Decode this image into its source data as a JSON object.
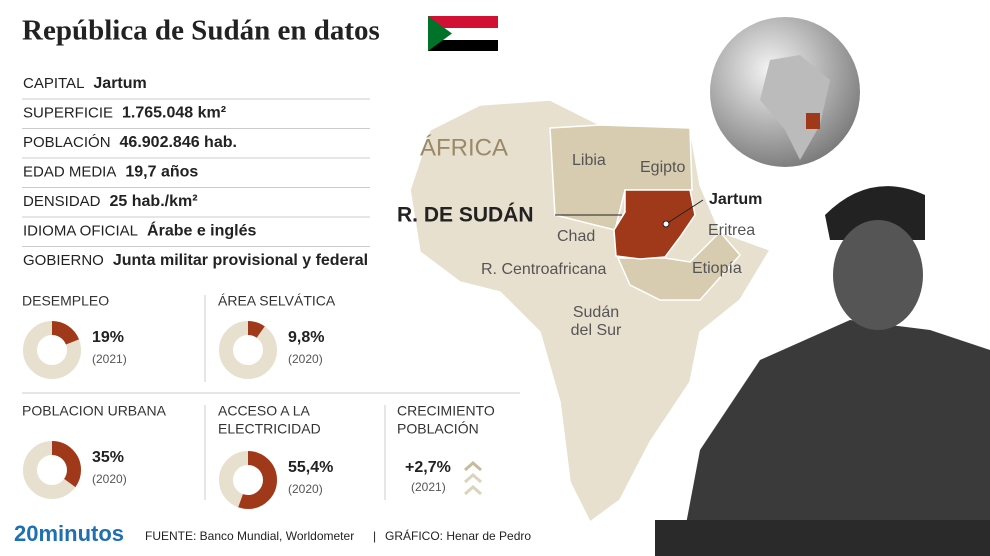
{
  "header": {
    "title": "República de Sudán en datos"
  },
  "facts": [
    {
      "label": "CAPITAL",
      "value": "Jartum"
    },
    {
      "label": "SUPERFICIE",
      "value": "1.765.048 km²"
    },
    {
      "label": "POBLACIÓN",
      "value": "46.902.846 hab."
    },
    {
      "label": "EDAD MEDIA",
      "value": "19,7 años"
    },
    {
      "label": "DENSIDAD",
      "value": "25 hab./km²"
    },
    {
      "label": "IDIOMA OFICIAL",
      "value": "Árabe e inglés"
    },
    {
      "label": "GOBIERNO",
      "value": "Junta militar provisional y federal"
    }
  ],
  "indicators": [
    {
      "title": [
        "DESEMPLEO"
      ],
      "value": 19,
      "value_label": "19%",
      "year": "(2021)"
    },
    {
      "title": [
        "ÁREA SELVÁTICA"
      ],
      "value": 9.8,
      "value_label": "9,8%",
      "year": "(2020)"
    },
    {
      "title": [
        "POBLACION URBANA"
      ],
      "value": 35,
      "value_label": "35%",
      "year": "(2020)"
    },
    {
      "title": [
        "ACCESO A LA",
        "ELECTRICIDAD"
      ],
      "value": 55.4,
      "value_label": "55,4%",
      "year": "(2020)"
    },
    {
      "title": [
        "CRECIMIENTO",
        "POBLACIÓN"
      ],
      "value_label": "+2,7%",
      "year": "(2021)"
    }
  ],
  "map": {
    "continent": "ÁFRICA",
    "country": "R. DE SUDÁN",
    "capital": "Jartum",
    "neighbors": [
      "Libia",
      "Egipto",
      "Chad",
      "Eritrea",
      "Etiopía",
      "R. Centroafricana"
    ],
    "south": [
      "Sudán",
      "del Sur"
    ]
  },
  "footer": {
    "brand": "20minutos",
    "source": "FUENTE: Banco Mundial, Worldometer",
    "separator": "|",
    "credit": "GRÁFICO: Henar de Pedro"
  }
}
